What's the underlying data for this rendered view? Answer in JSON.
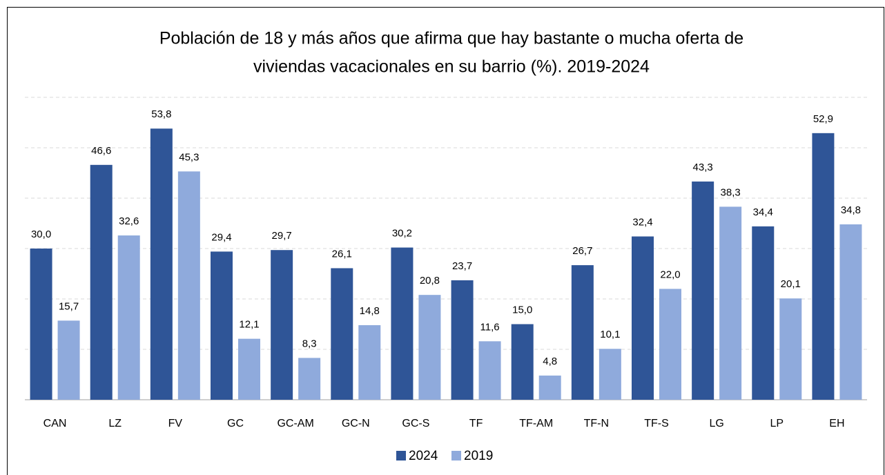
{
  "chart_data": {
    "type": "bar",
    "title": [
      "Población de 18 y  más años que afirma que hay bastante o mucha oferta de",
      "viviendas vacacionales en su barrio (%). 2019-2024"
    ],
    "categories": [
      "CAN",
      "LZ",
      "FV",
      "GC",
      "GC-AM",
      "GC-N",
      "GC-S",
      "TF",
      "TF-AM",
      "TF-N",
      "TF-S",
      "LG",
      "LP",
      "EH"
    ],
    "series": [
      {
        "name": "2024",
        "color": "#2f5597",
        "values": [
          30.0,
          46.6,
          53.8,
          29.4,
          29.7,
          26.1,
          30.2,
          23.7,
          15.0,
          26.7,
          32.4,
          43.3,
          34.4,
          52.9
        ],
        "value_labels": [
          "30,0",
          "46,6",
          "53,8",
          "29,4",
          "29,7",
          "26,1",
          "30,2",
          "23,7",
          "15,0",
          "26,7",
          "32,4",
          "43,3",
          "34,4",
          "52,9"
        ]
      },
      {
        "name": "2019",
        "color": "#8faadc",
        "values": [
          15.7,
          32.6,
          45.3,
          12.1,
          8.3,
          14.8,
          20.8,
          11.6,
          4.8,
          10.1,
          22.0,
          38.3,
          20.1,
          34.8
        ],
        "value_labels": [
          "15,7",
          "32,6",
          "45,3",
          "12,1",
          "8,3",
          "14,8",
          "20,8",
          "11,6",
          "4,8",
          "10,1",
          "22,0",
          "38,3",
          "20,1",
          "34,8"
        ]
      }
    ],
    "ylim": [
      0,
      60
    ],
    "yticks": [
      0,
      10,
      20,
      30,
      40,
      50,
      60
    ],
    "grid": true,
    "legend": "bottom"
  }
}
